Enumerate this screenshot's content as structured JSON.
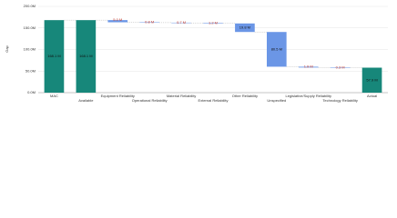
{
  "chart_data": {
    "type": "waterfall",
    "y_label": "Gap",
    "categories": [
      "MAC",
      "Available",
      "Equipment Reliability",
      "Operational Reliability",
      "Material Reliability",
      "External Reliability",
      "Other Reliability",
      "Unspecified",
      "Legislative/Supply Reliability",
      "Technology Reliability",
      "Actual"
    ],
    "measure": [
      "total",
      "total",
      "decrease",
      "decrease",
      "decrease",
      "decrease",
      "decrease",
      "decrease",
      "decrease",
      "decrease",
      "total"
    ],
    "values": [
      168.1,
      168.1,
      5.0,
      0.8,
      0.7,
      1.2,
      19.8,
      80.5,
      1.9,
      0.3,
      57.9
    ],
    "value_labels": [
      "168.1 M",
      "168.1 M",
      "5.0 M",
      "0.8 M",
      "0.7 M",
      "1.2 M",
      "19.8 M",
      "80.5 M",
      "1.9 M",
      "0.3 M",
      "57.9 M"
    ],
    "colors": {
      "total": "#17877a",
      "decrease": "#6b96e6"
    },
    "ylim": [
      0,
      200
    ],
    "yticks": [
      {
        "value": 0,
        "label": "0.0M"
      },
      {
        "value": 50,
        "label": "50.0M"
      },
      {
        "value": 100,
        "label": "100.0M"
      },
      {
        "value": 150,
        "label": "150.0M"
      },
      {
        "value": 200,
        "label": "200.0M"
      }
    ],
    "grid": true
  }
}
